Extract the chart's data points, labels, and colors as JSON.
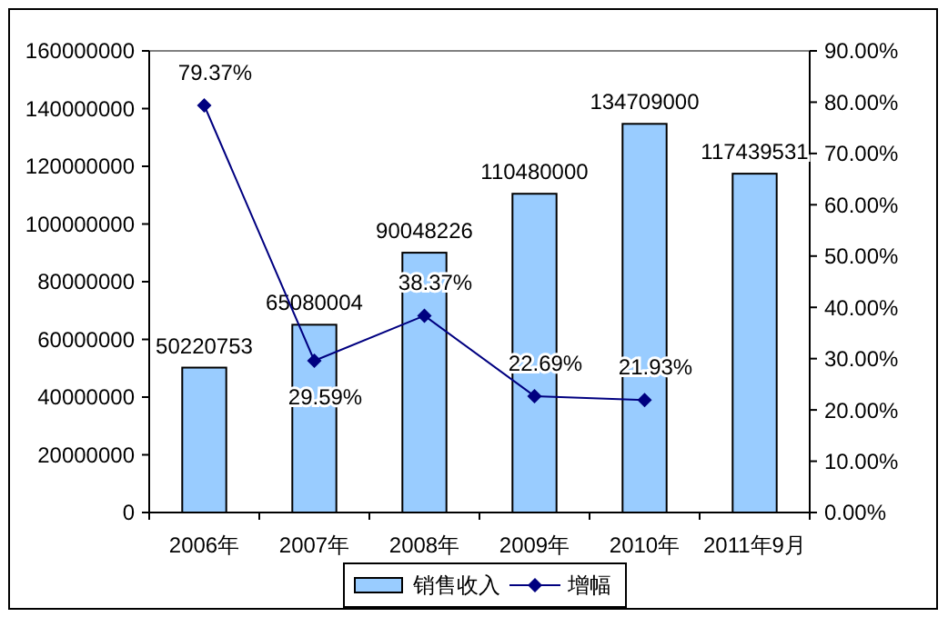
{
  "chart_data": {
    "type": "bar",
    "categories": [
      "2006年",
      "2007年",
      "2008年",
      "2009年",
      "2010年",
      "2011年9月"
    ],
    "series": [
      {
        "name": "销售收入",
        "color": "#99ccff",
        "values": [
          50220753,
          65080004,
          90048226,
          110480000,
          134709000,
          117439531
        ],
        "value_labels": [
          "50220753",
          "65080004",
          "90048226",
          "110480000",
          "134709000",
          "117439531"
        ]
      },
      {
        "name": "增幅",
        "type": "line",
        "axis": "y2",
        "color": "#000080",
        "marker": "diamond",
        "values": [
          79.37,
          29.59,
          38.37,
          22.69,
          21.93,
          null
        ],
        "value_labels": [
          "79.37%",
          "29.59%",
          "38.37%",
          "22.69%",
          "21.93%",
          null
        ]
      }
    ],
    "ylim": [
      0,
      160000000
    ],
    "yticks": [
      0,
      20000000,
      40000000,
      60000000,
      80000000,
      100000000,
      120000000,
      140000000,
      160000000
    ],
    "y2lim": [
      0,
      90
    ],
    "y2ticks": [
      {
        "value": 0,
        "label": "0.00%"
      },
      {
        "value": 10,
        "label": "10.00%"
      },
      {
        "value": 20,
        "label": "20.00%"
      },
      {
        "value": 30,
        "label": "30.00%"
      },
      {
        "value": 40,
        "label": "40.00%"
      },
      {
        "value": 50,
        "label": "50.00%"
      },
      {
        "value": 60,
        "label": "60.00%"
      },
      {
        "value": 70,
        "label": "70.00%"
      },
      {
        "value": 80,
        "label": "80.00%"
      },
      {
        "value": 90,
        "label": "90.00%"
      }
    ],
    "legend": "bottom",
    "grid": false
  }
}
